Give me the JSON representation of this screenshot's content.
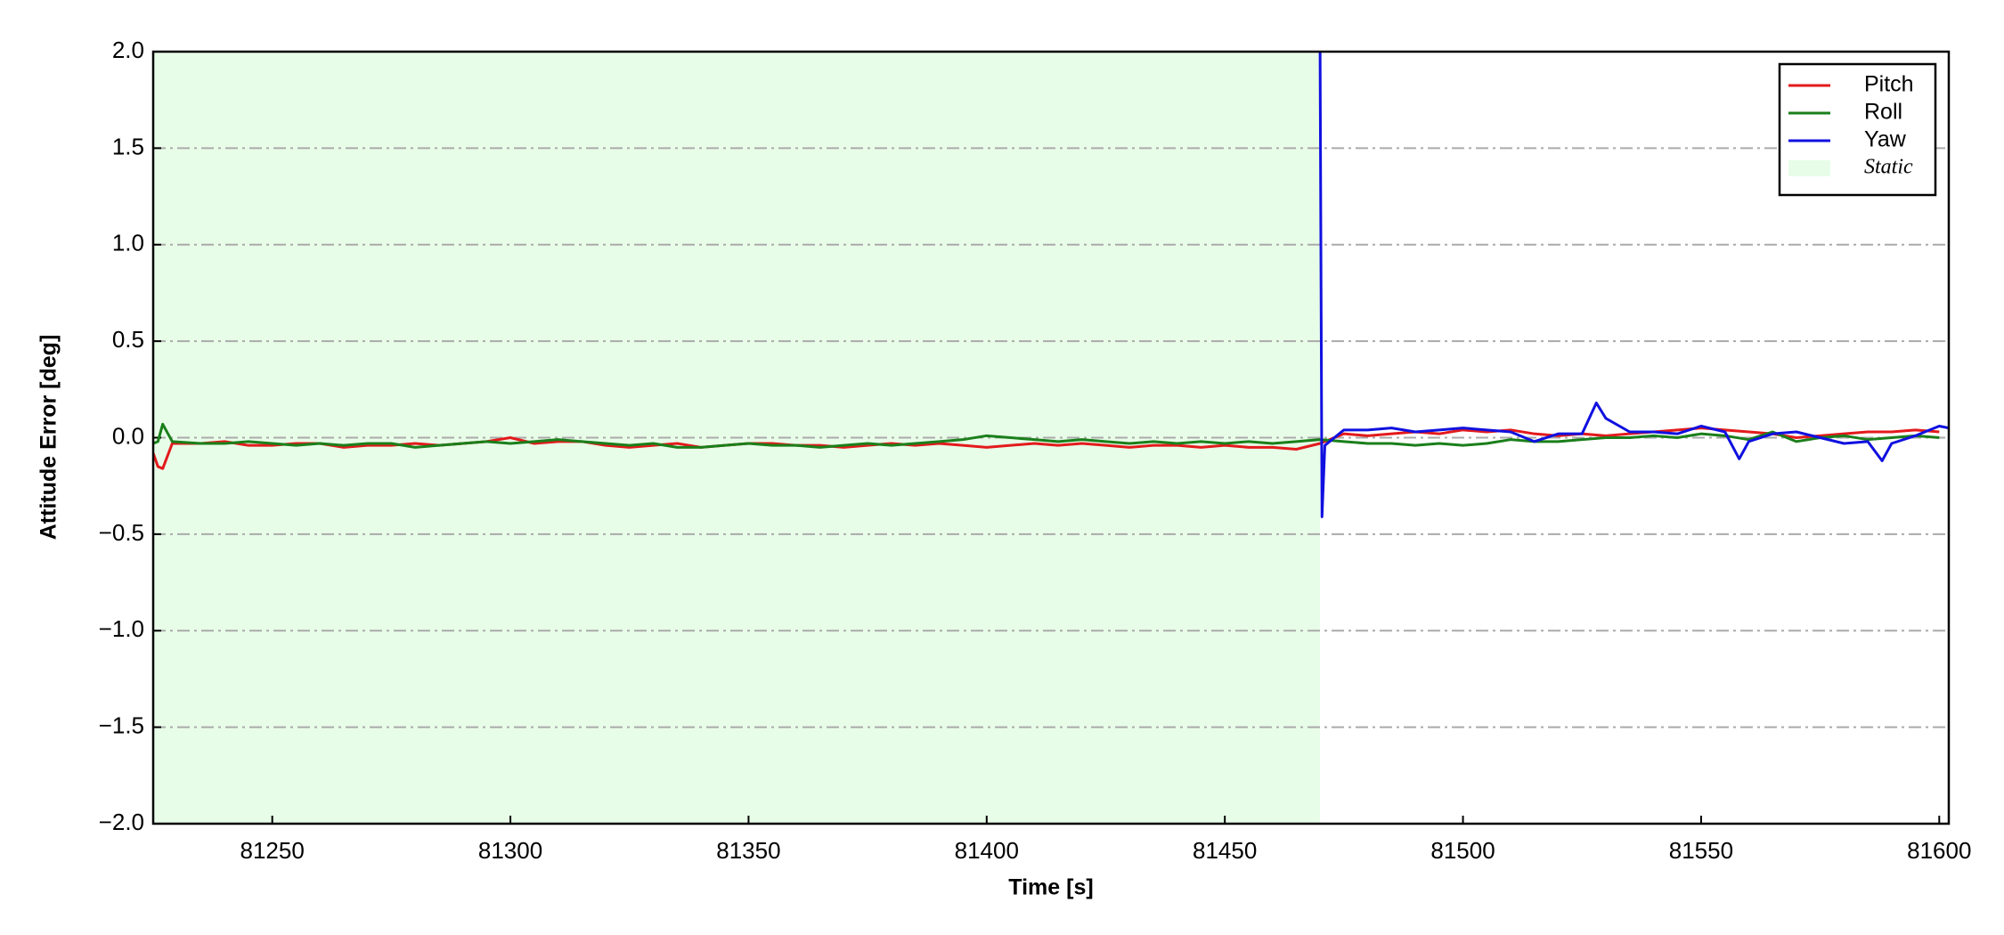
{
  "chart_data": {
    "type": "line",
    "xlabel": "Time [s]",
    "ylabel": "Attitude Error [deg]",
    "xlim": [
      81225,
      81602
    ],
    "ylim": [
      -2.0,
      2.0
    ],
    "xticks": [
      81250,
      81300,
      81350,
      81400,
      81450,
      81500,
      81550,
      81600
    ],
    "yticks": [
      {
        "value": -2.0,
        "label": "−2.0"
      },
      {
        "value": -1.5,
        "label": "−1.5"
      },
      {
        "value": -1.0,
        "label": "−1.0"
      },
      {
        "value": -0.5,
        "label": "−0.5"
      },
      {
        "value": 0.0,
        "label": "0.0"
      },
      {
        "value": 0.5,
        "label": "0.5"
      },
      {
        "value": 1.0,
        "label": "1.0"
      },
      {
        "value": 1.5,
        "label": "1.5"
      },
      {
        "value": 2.0,
        "label": "2.0"
      }
    ],
    "grid": true,
    "legend": "upper right",
    "span": {
      "name": "Static",
      "x": [
        81225,
        81470
      ],
      "color": "#e8fde8"
    },
    "series": [
      {
        "name": "Pitch",
        "color": "#e31a1c",
        "x": [
          81225,
          81226,
          81227,
          81229,
          81235,
          81240,
          81245,
          81250,
          81255,
          81260,
          81265,
          81270,
          81275,
          81280,
          81285,
          81290,
          81295,
          81300,
          81305,
          81310,
          81315,
          81320,
          81325,
          81330,
          81335,
          81340,
          81345,
          81350,
          81355,
          81360,
          81365,
          81370,
          81375,
          81380,
          81385,
          81390,
          81395,
          81400,
          81405,
          81410,
          81415,
          81420,
          81425,
          81430,
          81435,
          81440,
          81445,
          81450,
          81455,
          81460,
          81465,
          81470,
          81475,
          81480,
          81485,
          81490,
          81495,
          81500,
          81505,
          81510,
          81515,
          81520,
          81525,
          81530,
          81535,
          81540,
          81545,
          81550,
          81555,
          81560,
          81565,
          81570,
          81575,
          81580,
          81585,
          81590,
          81595,
          81600
        ],
        "values": [
          -0.08,
          -0.15,
          -0.16,
          -0.03,
          -0.03,
          -0.02,
          -0.04,
          -0.04,
          -0.03,
          -0.03,
          -0.05,
          -0.04,
          -0.04,
          -0.03,
          -0.04,
          -0.03,
          -0.02,
          0.0,
          -0.03,
          -0.02,
          -0.02,
          -0.04,
          -0.05,
          -0.04,
          -0.03,
          -0.05,
          -0.04,
          -0.03,
          -0.03,
          -0.04,
          -0.04,
          -0.05,
          -0.04,
          -0.03,
          -0.04,
          -0.03,
          -0.04,
          -0.05,
          -0.04,
          -0.03,
          -0.04,
          -0.03,
          -0.04,
          -0.05,
          -0.04,
          -0.04,
          -0.05,
          -0.04,
          -0.05,
          -0.05,
          -0.06,
          -0.03,
          0.02,
          0.01,
          0.02,
          0.03,
          0.02,
          0.04,
          0.03,
          0.04,
          0.02,
          0.01,
          0.02,
          0.01,
          0.02,
          0.03,
          0.04,
          0.05,
          0.04,
          0.03,
          0.02,
          0.0,
          0.01,
          0.02,
          0.03,
          0.03,
          0.04,
          0.03
        ]
      },
      {
        "name": "Roll",
        "color": "#1a7f1a",
        "x": [
          81225,
          81226,
          81227,
          81229,
          81235,
          81240,
          81245,
          81250,
          81255,
          81260,
          81265,
          81270,
          81275,
          81280,
          81285,
          81290,
          81295,
          81300,
          81305,
          81310,
          81315,
          81320,
          81325,
          81330,
          81335,
          81340,
          81345,
          81350,
          81355,
          81360,
          81365,
          81370,
          81375,
          81380,
          81385,
          81390,
          81395,
          81400,
          81405,
          81410,
          81415,
          81420,
          81425,
          81430,
          81435,
          81440,
          81445,
          81450,
          81455,
          81460,
          81465,
          81470,
          81475,
          81480,
          81485,
          81490,
          81495,
          81500,
          81505,
          81510,
          81515,
          81520,
          81525,
          81530,
          81535,
          81540,
          81545,
          81550,
          81555,
          81560,
          81565,
          81570,
          81575,
          81580,
          81585,
          81590,
          81595,
          81600
        ],
        "values": [
          -0.03,
          -0.02,
          0.07,
          -0.02,
          -0.03,
          -0.03,
          -0.02,
          -0.03,
          -0.04,
          -0.03,
          -0.04,
          -0.03,
          -0.03,
          -0.05,
          -0.04,
          -0.03,
          -0.02,
          -0.03,
          -0.02,
          -0.01,
          -0.02,
          -0.03,
          -0.04,
          -0.03,
          -0.05,
          -0.05,
          -0.04,
          -0.03,
          -0.04,
          -0.04,
          -0.05,
          -0.04,
          -0.03,
          -0.04,
          -0.03,
          -0.02,
          -0.01,
          0.01,
          0.0,
          -0.01,
          -0.02,
          -0.01,
          -0.02,
          -0.03,
          -0.02,
          -0.03,
          -0.02,
          -0.03,
          -0.02,
          -0.03,
          -0.02,
          -0.01,
          -0.02,
          -0.03,
          -0.03,
          -0.04,
          -0.03,
          -0.04,
          -0.03,
          -0.01,
          -0.02,
          -0.02,
          -0.01,
          0.0,
          0.0,
          0.01,
          0.0,
          0.02,
          0.01,
          -0.01,
          0.03,
          -0.02,
          0.0,
          0.01,
          -0.01,
          0.0,
          0.01,
          0.0
        ]
      },
      {
        "name": "Yaw",
        "color": "#1010e0",
        "x": [
          81470,
          81470.4,
          81471,
          81475,
          81480,
          81485,
          81490,
          81495,
          81500,
          81505,
          81510,
          81515,
          81520,
          81525,
          81528,
          81530,
          81535,
          81540,
          81545,
          81550,
          81555,
          81558,
          81560,
          81565,
          81570,
          81575,
          81580,
          81585,
          81588,
          81590,
          81595,
          81600,
          81602
        ],
        "values": [
          2.0,
          -0.41,
          -0.04,
          0.04,
          0.04,
          0.05,
          0.03,
          0.04,
          0.05,
          0.04,
          0.03,
          -0.02,
          0.02,
          0.02,
          0.18,
          0.1,
          0.03,
          0.03,
          0.02,
          0.06,
          0.03,
          -0.11,
          -0.02,
          0.02,
          0.03,
          0.0,
          -0.03,
          -0.02,
          -0.12,
          -0.03,
          0.01,
          0.06,
          0.05
        ]
      }
    ]
  }
}
